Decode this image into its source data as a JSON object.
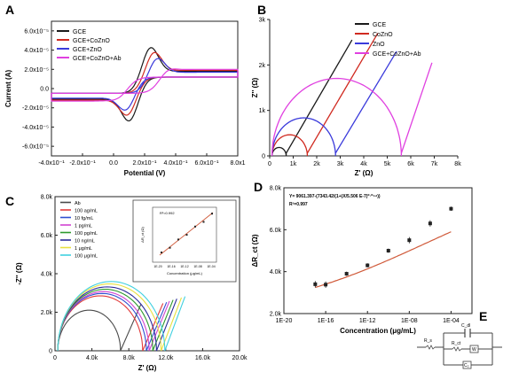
{
  "colors": {
    "GCE": "#1a1a1a",
    "CoZnO": "#d02a20",
    "ZnO": "#3a3adb",
    "Ab": "#e040e0",
    "fit": "#d05a3a"
  },
  "chart_data": [
    {
      "panel": "A",
      "type": "line",
      "xlabel": "Potential (V)",
      "ylabel": "Current (A)",
      "xlim": [
        -0.4,
        0.8
      ],
      "ylim": [
        -7e-05,
        7e-05
      ],
      "xticks": [
        "-4.0x10⁻¹",
        "-2.0x10⁻¹",
        "0.0",
        "2.0x10⁻¹",
        "4.0x10⁻¹",
        "6.0x10⁻¹",
        "8.0x1"
      ],
      "yticks": [
        "6.0x10⁻⁵",
        "4.0x10⁻⁵",
        "2.0x10⁻⁵",
        "0.0",
        "-2.0x10⁻⁵",
        "-4.0x10⁻⁵",
        "-6.0x10⁻⁵"
      ],
      "legend": [
        "GCE",
        "GCE+CoZnO",
        "GCE+ZnO",
        "GCE+CoZnO+Ab"
      ],
      "legend_position": "top-left",
      "series": [
        {
          "name": "GCE",
          "color": "#1a1a1a",
          "ipa": 5.5e-05,
          "ipc": -5.3e-05,
          "epa": 0.23,
          "epc": 0.11,
          "base": 2.3e-05
        },
        {
          "name": "GCE+CoZnO",
          "color": "#d02a20",
          "ipa": 5e-05,
          "ipc": -4.7e-05,
          "epa": 0.25,
          "epc": 0.1,
          "base": 2.4e-05
        },
        {
          "name": "GCE+ZnO",
          "color": "#3a3adb",
          "ipa": 4.3e-05,
          "ipc": -4.1e-05,
          "epa": 0.27,
          "epc": 0.09,
          "base": 2.2e-05
        },
        {
          "name": "GCE+CoZnO+Ab",
          "color": "#e040e0",
          "ipa": 3e-05,
          "ipc": -2.7e-05,
          "epa": 0.33,
          "epc": 0.06,
          "base": 2.5e-05
        }
      ]
    },
    {
      "panel": "B",
      "type": "line",
      "xlabel": "Z' (Ω)",
      "ylabel": "Z'' (Ω)",
      "xlim": [
        0,
        8000
      ],
      "ylim": [
        0,
        3000
      ],
      "xticks": [
        "0",
        "1k",
        "2k",
        "3k",
        "4k",
        "5k",
        "6k",
        "7k",
        "8k"
      ],
      "yticks": [
        "0",
        "1k",
        "2k",
        "3k"
      ],
      "legend": [
        "GCE",
        "CoZnO",
        "ZnO",
        "GCE+CoZnO+Ab"
      ],
      "legend_position": "top-left",
      "series": [
        {
          "name": "GCE",
          "color": "#1a1a1a",
          "rs": 100,
          "rct": 600,
          "wstart": 700,
          "wend": [
            3500,
            2550
          ]
        },
        {
          "name": "CoZnO",
          "color": "#d02a20",
          "rs": 100,
          "rct": 1500,
          "wstart": 1600,
          "wend": [
            4600,
            2700
          ]
        },
        {
          "name": "ZnO",
          "color": "#3a3adb",
          "rs": 100,
          "rct": 2700,
          "wstart": 2800,
          "wend": [
            5400,
            2300
          ]
        },
        {
          "name": "GCE+CoZnO+Ab",
          "color": "#e040e0",
          "rs": 100,
          "rct": 5500,
          "wstart": 5600,
          "wend": [
            6900,
            2050
          ]
        }
      ]
    },
    {
      "panel": "C",
      "type": "line",
      "xlabel": "Z' (Ω)",
      "ylabel": "-Z'' (Ω)",
      "xlim": [
        0,
        20000
      ],
      "ylim": [
        0,
        8000
      ],
      "xticks": [
        "0",
        "4.0k",
        "8.0k",
        "12.0k",
        "16.0k",
        "20.0k"
      ],
      "yticks": [
        "0",
        "2.0k",
        "4.0k",
        "6.0k",
        "8.0k"
      ],
      "legend": [
        "Ab",
        "100 ag/mL",
        "10 fg/mL",
        "1 pg/mL",
        "100 pg/mL",
        "10 ng/mL",
        "1 μg/mL",
        "100 μg/mL"
      ],
      "legend_position": "top-left",
      "series": [
        {
          "name": "Ab",
          "color": "#4a4a4a",
          "rs": 300,
          "rct": 6800
        },
        {
          "name": "100 ag/mL",
          "color": "#e23b3b",
          "rs": 300,
          "rct": 9200
        },
        {
          "name": "10 fg/mL",
          "color": "#2f4fd0",
          "rs": 300,
          "rct": 9600
        },
        {
          "name": "1 pg/mL",
          "color": "#d044d0",
          "rs": 300,
          "rct": 9900
        },
        {
          "name": "100 pg/mL",
          "color": "#2e9a2e",
          "rs": 300,
          "rct": 10300
        },
        {
          "name": "10 ng/mL",
          "color": "#2a2a9a",
          "rs": 300,
          "rct": 10700
        },
        {
          "name": "1 μg/mL",
          "color": "#e8e040",
          "rs": 300,
          "rct": 11200
        },
        {
          "name": "100 μg/mL",
          "color": "#40d0e0",
          "rs": 300,
          "rct": 11600
        }
      ],
      "inset": {
        "ylabel": "ΔR_ct (Ω)",
        "xlabel": "Concentration (μg/mL)",
        "r2": "R²=0.992",
        "xticks": [
          "1E-20",
          "1E-16",
          "1E-12",
          "1E-08",
          "1E-04"
        ]
      }
    },
    {
      "panel": "D",
      "type": "scatter",
      "xlabel": "Concentration (μg/mL)",
      "ylabel": "ΔR_ct (Ω)",
      "xscale": "log",
      "xlim": [
        1e-20,
        0.01
      ],
      "ylim": [
        2000,
        8000
      ],
      "xticks": [
        "1E-20",
        "1E-16",
        "1E-12",
        "1E-08",
        "1E-04"
      ],
      "yticks": [
        "2.0k",
        "4.0k",
        "6.0k",
        "8.0k"
      ],
      "equation": "Y= 9061.397-(7343.42/(1+(X/5.506 E-7)⁰·⁰⁵⁴))",
      "r2": "R²=0.997",
      "x": [
        1e-17,
        1e-16,
        1e-14,
        1e-12,
        1e-10,
        1e-08,
        1e-06,
        0.0001
      ],
      "y": [
        3400,
        3380,
        3900,
        4300,
        5000,
        5500,
        6300,
        7000
      ],
      "err": [
        150,
        150,
        100,
        100,
        100,
        150,
        150,
        100
      ]
    }
  ],
  "panel_labels": {
    "a": "A",
    "b": "B",
    "c": "C",
    "d": "D",
    "e": "E"
  },
  "circuit": {
    "cdl": "C_dl",
    "rs": "R_s",
    "rct": "R_ct",
    "w": "W",
    "c2": "C₂"
  }
}
